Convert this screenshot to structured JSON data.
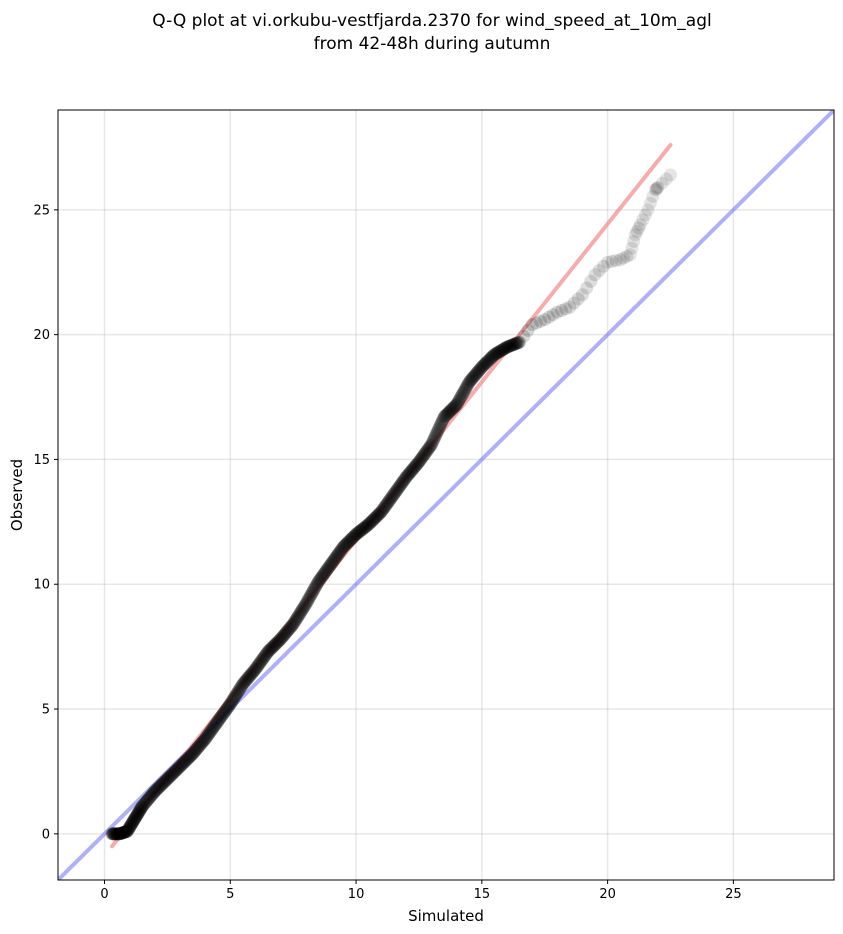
{
  "chart_data": {
    "type": "scatter",
    "title_lines": [
      "Q-Q plot at vi.orkubu-vestfjarda.2370 for wind_speed_at_10m_agl",
      "from 42-48h during autumn"
    ],
    "xlabel": "Simulated",
    "ylabel": "Observed",
    "xlim": [
      -1.85,
      29.0
    ],
    "ylim": [
      -1.85,
      29.0
    ],
    "xticks": [
      0,
      5,
      10,
      15,
      20,
      25
    ],
    "yticks": [
      0,
      5,
      10,
      15,
      20,
      25
    ],
    "xtick_labels": [
      "0",
      "5",
      "10",
      "15",
      "20",
      "25"
    ],
    "ytick_labels": [
      "0",
      "5",
      "10",
      "15",
      "20",
      "25"
    ],
    "grid": true,
    "colors": {
      "points": "#000000",
      "fit_line": "#f08080",
      "identity_line": "#7b7bf0"
    },
    "identity_line": {
      "name": "y = x",
      "from": [
        -1.85,
        -1.85
      ],
      "to": [
        29.0,
        29.0
      ]
    },
    "fit_line": {
      "from": [
        0.3,
        -0.5
      ],
      "to": [
        22.5,
        27.6
      ]
    },
    "qq_curve": [
      [
        0.3,
        0.0
      ],
      [
        0.6,
        0.0
      ],
      [
        0.9,
        0.1
      ],
      [
        1.2,
        0.6
      ],
      [
        1.5,
        1.1
      ],
      [
        2.0,
        1.7
      ],
      [
        2.5,
        2.2
      ],
      [
        3.0,
        2.7
      ],
      [
        3.5,
        3.2
      ],
      [
        4.0,
        3.8
      ],
      [
        4.5,
        4.5
      ],
      [
        5.0,
        5.2
      ],
      [
        5.5,
        6.0
      ],
      [
        6.0,
        6.6
      ],
      [
        6.5,
        7.3
      ],
      [
        7.0,
        7.8
      ],
      [
        7.5,
        8.4
      ],
      [
        8.0,
        9.2
      ],
      [
        8.5,
        10.1
      ],
      [
        9.0,
        10.8
      ],
      [
        9.5,
        11.5
      ],
      [
        10.0,
        12.0
      ],
      [
        10.5,
        12.4
      ],
      [
        11.0,
        12.9
      ],
      [
        11.5,
        13.6
      ],
      [
        12.0,
        14.3
      ],
      [
        12.5,
        14.9
      ],
      [
        13.0,
        15.6
      ],
      [
        13.5,
        16.7
      ],
      [
        14.0,
        17.2
      ],
      [
        14.5,
        18.1
      ],
      [
        15.0,
        18.7
      ],
      [
        15.5,
        19.2
      ],
      [
        16.0,
        19.5
      ],
      [
        16.5,
        19.7
      ],
      [
        17.0,
        20.4
      ],
      [
        17.5,
        20.6
      ],
      [
        18.0,
        20.9
      ],
      [
        18.5,
        21.1
      ],
      [
        19.0,
        21.6
      ],
      [
        19.5,
        22.4
      ],
      [
        20.0,
        22.9
      ],
      [
        20.5,
        23.0
      ],
      [
        20.9,
        23.2
      ],
      [
        21.1,
        24.0
      ],
      [
        21.3,
        24.4
      ],
      [
        21.6,
        25.0
      ],
      [
        21.9,
        25.8
      ],
      [
        22.0,
        25.9
      ],
      [
        22.5,
        26.4
      ]
    ],
    "points_per_segment": 14
  }
}
